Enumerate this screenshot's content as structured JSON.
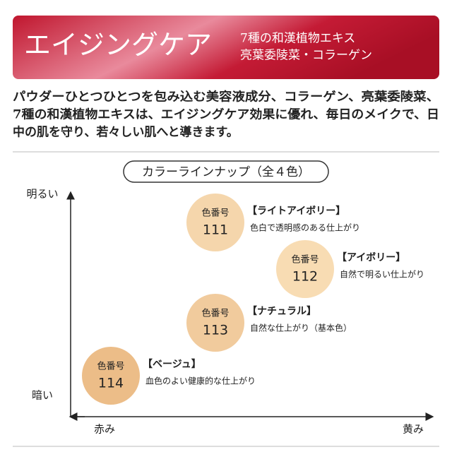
{
  "banner": {
    "title": "エイジングケア",
    "subtitle_lines": [
      "7種の和漢植物エキス",
      "亮葉委陵菜・コラーゲン"
    ]
  },
  "description_lines": [
    "パウダーひとつひとつを包み込む美容液成分、コラーゲン、亮葉委陵菜、",
    "7種の和漢植物エキスは、エイジングケア効果に優れ、毎日のメイクで、日",
    "中の肌を守り、若々しい肌へと導きます。"
  ],
  "lineup": {
    "title": "カラーラインナップ（全４色）",
    "axes": {
      "top": "明るい",
      "bottom": "暗い",
      "left": "赤み",
      "right": "黄み"
    },
    "nodes": [
      {
        "code_label": "色番号",
        "number": "111",
        "name": "【ライトアイボリー】",
        "description": "色白で透明感のある仕上がり"
      },
      {
        "code_label": "色番号",
        "number": "112",
        "name": "【アイボリー】",
        "description": "自然で明るい仕上がり"
      },
      {
        "code_label": "色番号",
        "number": "113",
        "name": "【ナチュラル】",
        "description": "自然な仕上がり（基本色）"
      },
      {
        "code_label": "色番号",
        "number": "114",
        "name": "【ベージュ】",
        "description": "血色のよい健康的な仕上がり"
      }
    ]
  }
}
